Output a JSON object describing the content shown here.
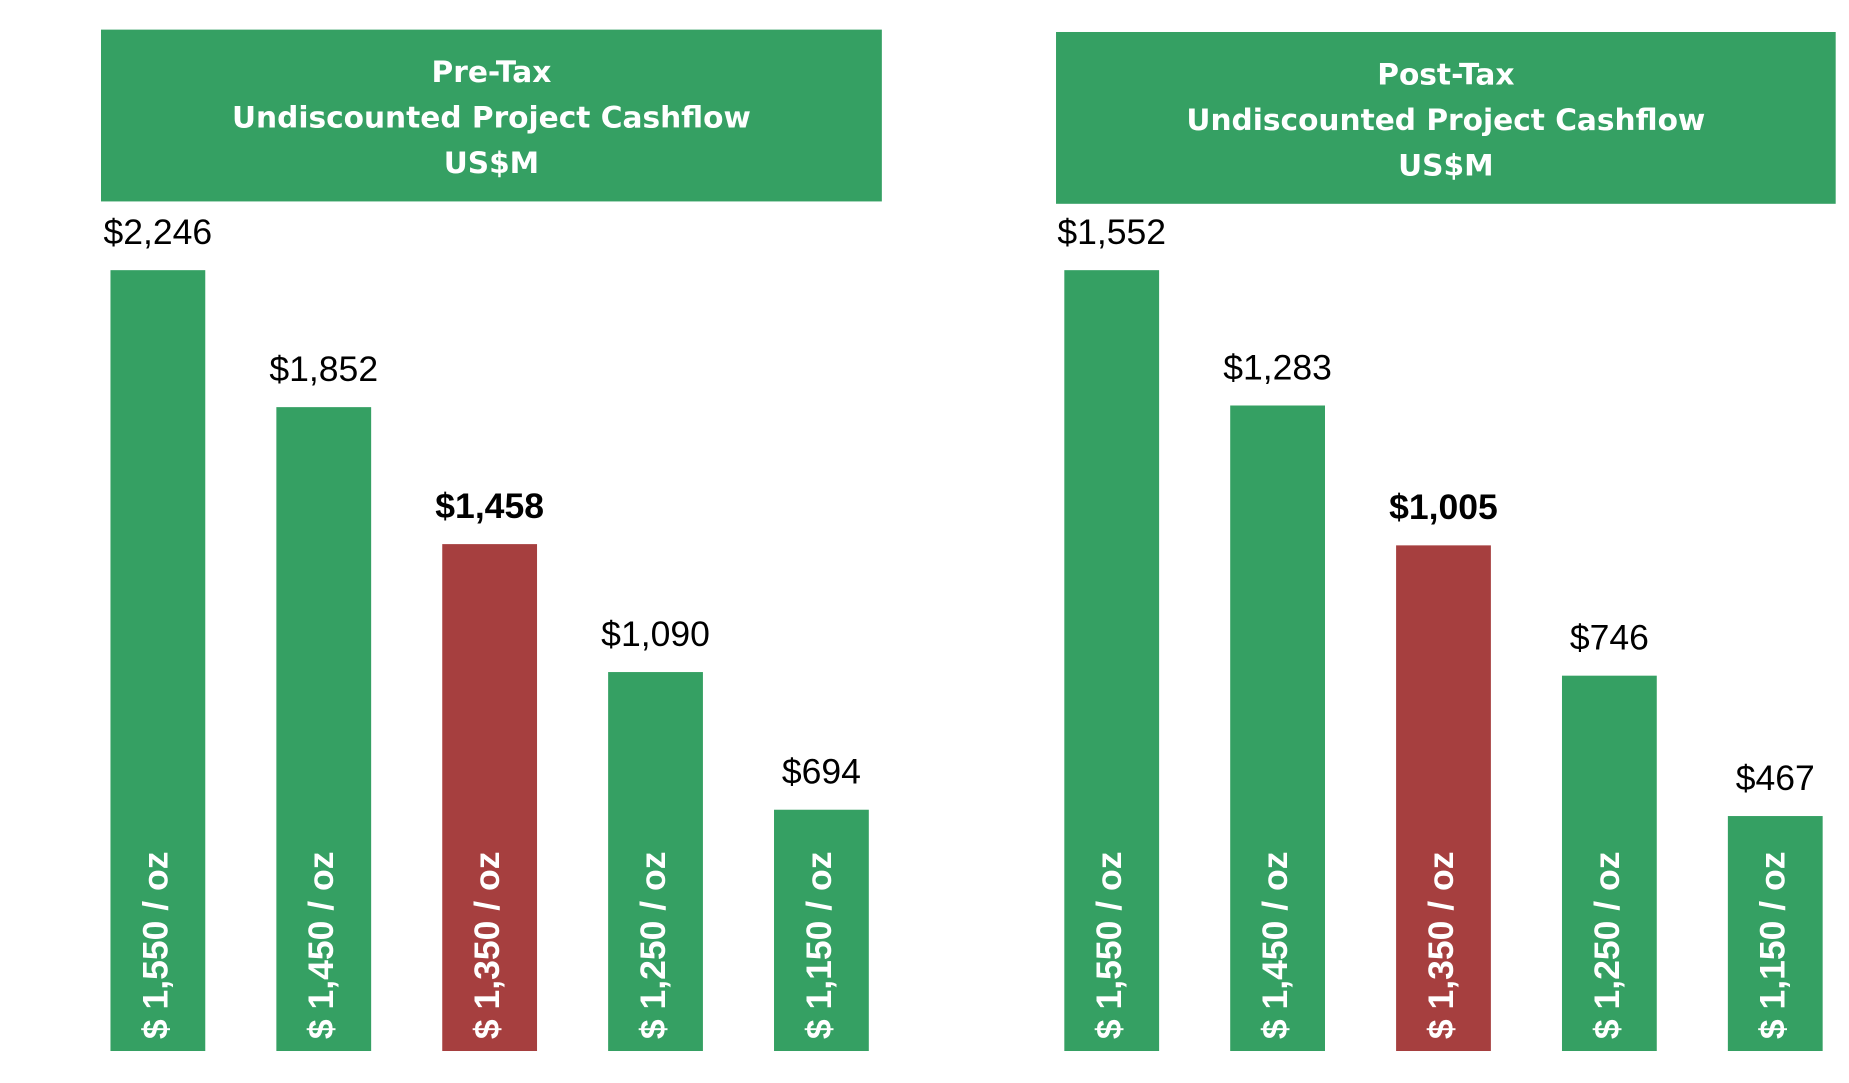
{
  "chart_data": [
    {
      "type": "bar",
      "title": [
        "Pre-Tax",
        "Undiscounted Project Cashflow",
        "US$M"
      ],
      "categories": [
        "$ 1,550 / oz",
        "$ 1,450 / oz",
        "$ 1,350 / oz",
        "$ 1,250 / oz",
        "$ 1,150 / oz"
      ],
      "values": [
        2246,
        1852,
        1458,
        1090,
        694
      ],
      "value_labels": [
        "$2,246",
        "$1,852",
        "$1,458",
        "$1,090",
        "$694"
      ],
      "color": "#35a063",
      "highlight": {
        "index": 2,
        "color": "#a63f3f"
      }
    },
    {
      "type": "bar",
      "title": [
        "Post-Tax",
        "Undiscounted Project Cashflow",
        "US$M"
      ],
      "categories": [
        "$ 1,550 / oz",
        "$ 1,450 / oz",
        "$ 1,350 / oz",
        "$ 1,250 / oz",
        "$ 1,150 / oz"
      ],
      "values": [
        1552,
        1283,
        1005,
        746,
        467
      ],
      "value_labels": [
        "$1,552",
        "$1,283",
        "$1,005",
        "$746",
        "$467"
      ],
      "color": "#35a063",
      "highlight": {
        "index": 2,
        "color": "#a63f3f"
      }
    }
  ]
}
